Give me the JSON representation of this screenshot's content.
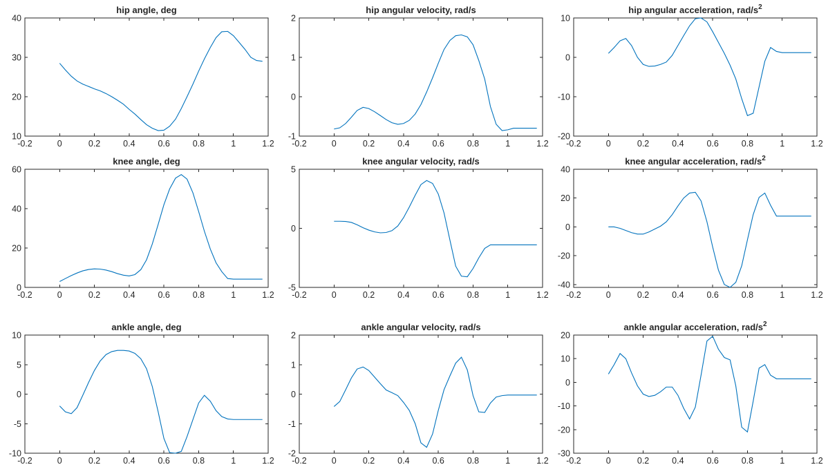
{
  "figure": {
    "background": "#ffffff",
    "axis_color": "#262626",
    "line_color": "#0072BD"
  },
  "chart_data": [
    {
      "type": "line",
      "title": "hip angle, deg",
      "title_sup": "",
      "xlim": [
        -0.2,
        1.2
      ],
      "ylim": [
        10,
        40
      ],
      "xticks": [
        "-0.2",
        "0",
        "0.2",
        "0.4",
        "0.6",
        "0.8",
        "1",
        "1.2"
      ],
      "yticks": [
        "10",
        "20",
        "30",
        "40"
      ],
      "series": [
        {
          "x": [
            0,
            0.033,
            0.067,
            0.1,
            0.133,
            0.167,
            0.2,
            0.233,
            0.267,
            0.3,
            0.333,
            0.367,
            0.4,
            0.433,
            0.467,
            0.5,
            0.533,
            0.567,
            0.6,
            0.633,
            0.667,
            0.7,
            0.733,
            0.767,
            0.8,
            0.833,
            0.867,
            0.9,
            0.933,
            0.967,
            1.0,
            1.033,
            1.067,
            1.1,
            1.133,
            1.167
          ],
          "y": [
            28.5,
            26.8,
            25.2,
            24.0,
            23.2,
            22.6,
            22.0,
            21.5,
            20.8,
            20.0,
            19.1,
            18.1,
            16.8,
            15.6,
            14.2,
            12.9,
            12.0,
            11.4,
            11.5,
            12.5,
            14.3,
            17.0,
            20.0,
            23.2,
            26.5,
            29.6,
            32.5,
            35.0,
            36.5,
            36.6,
            35.5,
            33.8,
            32.0,
            30.0,
            29.2,
            29.0
          ]
        }
      ]
    },
    {
      "type": "line",
      "title": "hip angular velocity, rad/s",
      "title_sup": "",
      "xlim": [
        -0.2,
        1.2
      ],
      "ylim": [
        -1,
        2
      ],
      "xticks": [
        "-0.2",
        "0",
        "0.2",
        "0.4",
        "0.6",
        "0.8",
        "1",
        "1.2"
      ],
      "yticks": [
        "-1",
        "0",
        "1",
        "2"
      ],
      "series": [
        {
          "x": [
            0,
            0.033,
            0.067,
            0.1,
            0.133,
            0.167,
            0.2,
            0.233,
            0.267,
            0.3,
            0.333,
            0.367,
            0.4,
            0.433,
            0.467,
            0.5,
            0.533,
            0.567,
            0.6,
            0.633,
            0.667,
            0.7,
            0.733,
            0.767,
            0.8,
            0.833,
            0.867,
            0.9,
            0.933,
            0.967,
            1.0,
            1.033,
            1.067,
            1.1,
            1.133,
            1.167
          ],
          "y": [
            -0.82,
            -0.79,
            -0.68,
            -0.52,
            -0.35,
            -0.27,
            -0.3,
            -0.38,
            -0.48,
            -0.58,
            -0.66,
            -0.7,
            -0.68,
            -0.6,
            -0.44,
            -0.2,
            0.12,
            0.48,
            0.85,
            1.2,
            1.43,
            1.55,
            1.57,
            1.52,
            1.32,
            0.92,
            0.45,
            -0.25,
            -0.7,
            -0.86,
            -0.84,
            -0.8,
            -0.8,
            -0.8,
            -0.8,
            -0.8
          ]
        }
      ]
    },
    {
      "type": "line",
      "title": "hip angular acceleration, rad/s",
      "title_sup": "2",
      "xlim": [
        -0.2,
        1.2
      ],
      "ylim": [
        -20,
        10
      ],
      "xticks": [
        "-0.2",
        "0",
        "0.2",
        "0.4",
        "0.6",
        "0.8",
        "1",
        "1.2"
      ],
      "yticks": [
        "-20",
        "-10",
        "0",
        "10"
      ],
      "series": [
        {
          "x": [
            0,
            0.033,
            0.067,
            0.1,
            0.133,
            0.167,
            0.2,
            0.233,
            0.267,
            0.3,
            0.333,
            0.367,
            0.4,
            0.433,
            0.467,
            0.5,
            0.533,
            0.567,
            0.6,
            0.633,
            0.667,
            0.7,
            0.733,
            0.767,
            0.8,
            0.833,
            0.867,
            0.9,
            0.933,
            0.967,
            1.0,
            1.033,
            1.067,
            1.1,
            1.133,
            1.167
          ],
          "y": [
            1.0,
            2.5,
            4.2,
            4.8,
            3.0,
            0.0,
            -1.8,
            -2.3,
            -2.2,
            -1.8,
            -1.2,
            0.5,
            3.0,
            5.5,
            8.0,
            9.8,
            10.5,
            9.0,
            6.5,
            3.8,
            1.0,
            -2.0,
            -5.5,
            -10.5,
            -14.8,
            -14.2,
            -7.5,
            -1.0,
            2.5,
            1.5,
            1.2,
            1.2,
            1.2,
            1.2,
            1.2,
            1.2
          ]
        }
      ]
    },
    {
      "type": "line",
      "title": "knee angle, deg",
      "title_sup": "",
      "xlim": [
        -0.2,
        1.2
      ],
      "ylim": [
        0,
        60
      ],
      "xticks": [
        "-0.2",
        "0",
        "0.2",
        "0.4",
        "0.6",
        "0.8",
        "1",
        "1.2"
      ],
      "yticks": [
        "0",
        "20",
        "40",
        "60"
      ],
      "series": [
        {
          "x": [
            0,
            0.033,
            0.067,
            0.1,
            0.133,
            0.167,
            0.2,
            0.233,
            0.267,
            0.3,
            0.333,
            0.367,
            0.4,
            0.433,
            0.467,
            0.5,
            0.533,
            0.567,
            0.6,
            0.633,
            0.667,
            0.7,
            0.733,
            0.767,
            0.8,
            0.833,
            0.867,
            0.9,
            0.933,
            0.967,
            1.0,
            1.033,
            1.067,
            1.1,
            1.133,
            1.167
          ],
          "y": [
            3.0,
            4.5,
            6.0,
            7.3,
            8.4,
            9.1,
            9.4,
            9.3,
            8.8,
            8.0,
            7.0,
            6.2,
            5.8,
            6.5,
            9.0,
            14.0,
            22.0,
            32.0,
            42.0,
            50.0,
            55.5,
            57.3,
            55.0,
            48.0,
            38.5,
            28.5,
            19.5,
            12.5,
            8.0,
            4.5,
            4.2,
            4.2,
            4.2,
            4.2,
            4.2,
            4.2
          ]
        }
      ]
    },
    {
      "type": "line",
      "title": "knee angular velocity, rad/s",
      "title_sup": "",
      "xlim": [
        -0.2,
        1.2
      ],
      "ylim": [
        -5,
        5
      ],
      "xticks": [
        "-0.2",
        "0",
        "0.2",
        "0.4",
        "0.6",
        "0.8",
        "1",
        "1.2"
      ],
      "yticks": [
        "-5",
        "0",
        "5"
      ],
      "series": [
        {
          "x": [
            0,
            0.033,
            0.067,
            0.1,
            0.133,
            0.167,
            0.2,
            0.233,
            0.267,
            0.3,
            0.333,
            0.367,
            0.4,
            0.433,
            0.467,
            0.5,
            0.533,
            0.567,
            0.6,
            0.633,
            0.667,
            0.7,
            0.733,
            0.767,
            0.8,
            0.833,
            0.867,
            0.9,
            0.933,
            0.967,
            1.0,
            1.033,
            1.067,
            1.1,
            1.133,
            1.167
          ],
          "y": [
            0.6,
            0.6,
            0.58,
            0.5,
            0.3,
            0.05,
            -0.15,
            -0.3,
            -0.38,
            -0.35,
            -0.2,
            0.2,
            0.9,
            1.8,
            2.8,
            3.7,
            4.05,
            3.8,
            2.9,
            1.3,
            -1.0,
            -3.2,
            -4.05,
            -4.1,
            -3.4,
            -2.5,
            -1.7,
            -1.4,
            -1.4,
            -1.4,
            -1.4,
            -1.4,
            -1.4,
            -1.4,
            -1.4,
            -1.4
          ]
        }
      ]
    },
    {
      "type": "line",
      "title": "knee angular acceleration, rad/s",
      "title_sup": "2",
      "xlim": [
        -0.2,
        1.2
      ],
      "ylim": [
        -42,
        40
      ],
      "xticks": [
        "-0.2",
        "0",
        "0.2",
        "0.4",
        "0.6",
        "0.8",
        "1",
        "1.2"
      ],
      "yticks": [
        "-40",
        "-20",
        "0",
        "20",
        "40"
      ],
      "series": [
        {
          "x": [
            0,
            0.033,
            0.067,
            0.1,
            0.133,
            0.167,
            0.2,
            0.233,
            0.267,
            0.3,
            0.333,
            0.367,
            0.4,
            0.433,
            0.467,
            0.5,
            0.533,
            0.567,
            0.6,
            0.633,
            0.667,
            0.7,
            0.733,
            0.767,
            0.8,
            0.833,
            0.867,
            0.9,
            0.933,
            0.967,
            1.0,
            1.033,
            1.067,
            1.1,
            1.133,
            1.167
          ],
          "y": [
            0.0,
            0.0,
            -1.0,
            -2.5,
            -4.0,
            -5.0,
            -5.0,
            -3.5,
            -1.5,
            0.5,
            3.5,
            8.5,
            14.5,
            20.0,
            23.5,
            24.0,
            18.0,
            3.5,
            -14.0,
            -30.0,
            -40.0,
            -43.0,
            -38.5,
            -27.0,
            -9.0,
            8.5,
            20.5,
            23.5,
            15.0,
            7.5,
            7.5,
            7.5,
            7.5,
            7.5,
            7.5,
            7.5
          ]
        }
      ]
    },
    {
      "type": "line",
      "title": "ankle angle, deg",
      "title_sup": "",
      "xlim": [
        -0.2,
        1.2
      ],
      "ylim": [
        -10,
        10
      ],
      "xticks": [
        "-0.2",
        "0",
        "0.2",
        "0.4",
        "0.6",
        "0.8",
        "1",
        "1.2"
      ],
      "yticks": [
        "-10",
        "-5",
        "0",
        "5",
        "10"
      ],
      "series": [
        {
          "x": [
            0,
            0.033,
            0.067,
            0.1,
            0.133,
            0.167,
            0.2,
            0.233,
            0.267,
            0.3,
            0.333,
            0.367,
            0.4,
            0.433,
            0.467,
            0.5,
            0.533,
            0.567,
            0.6,
            0.633,
            0.667,
            0.7,
            0.733,
            0.767,
            0.8,
            0.833,
            0.867,
            0.9,
            0.933,
            0.967,
            1.0,
            1.033,
            1.067,
            1.1,
            1.133,
            1.167
          ],
          "y": [
            -2.0,
            -3.0,
            -3.3,
            -2.3,
            -0.2,
            2.0,
            4.0,
            5.6,
            6.7,
            7.2,
            7.4,
            7.4,
            7.3,
            6.9,
            6.0,
            4.3,
            1.3,
            -3.0,
            -7.5,
            -9.9,
            -10.5,
            -9.7,
            -7.2,
            -4.3,
            -1.5,
            -0.2,
            -1.2,
            -2.8,
            -3.8,
            -4.2,
            -4.3,
            -4.3,
            -4.3,
            -4.3,
            -4.3,
            -4.3
          ]
        }
      ]
    },
    {
      "type": "line",
      "title": "ankle angular velocity, rad/s",
      "title_sup": "",
      "xlim": [
        -0.2,
        1.2
      ],
      "ylim": [
        -2,
        2
      ],
      "xticks": [
        "-0.2",
        "0",
        "0.2",
        "0.4",
        "0.6",
        "0.8",
        "1",
        "1.2"
      ],
      "yticks": [
        "-2",
        "-1",
        "0",
        "1",
        "2"
      ],
      "series": [
        {
          "x": [
            0,
            0.033,
            0.067,
            0.1,
            0.133,
            0.167,
            0.2,
            0.233,
            0.267,
            0.3,
            0.333,
            0.367,
            0.4,
            0.433,
            0.467,
            0.5,
            0.533,
            0.567,
            0.6,
            0.633,
            0.667,
            0.7,
            0.733,
            0.767,
            0.8,
            0.833,
            0.867,
            0.9,
            0.933,
            0.967,
            1.0,
            1.033,
            1.067,
            1.1,
            1.133,
            1.167
          ],
          "y": [
            -0.42,
            -0.25,
            0.15,
            0.55,
            0.85,
            0.92,
            0.8,
            0.58,
            0.35,
            0.14,
            0.05,
            -0.05,
            -0.28,
            -0.55,
            -1.0,
            -1.65,
            -1.8,
            -1.35,
            -0.55,
            0.15,
            0.62,
            1.05,
            1.25,
            0.82,
            -0.05,
            -0.6,
            -0.62,
            -0.3,
            -0.1,
            -0.05,
            -0.03,
            -0.03,
            -0.03,
            -0.03,
            -0.03,
            -0.03
          ]
        }
      ]
    },
    {
      "type": "line",
      "title": "ankle angular acceleration, rad/s",
      "title_sup": "2",
      "xlim": [
        -0.2,
        1.2
      ],
      "ylim": [
        -30,
        20
      ],
      "xticks": [
        "-0.2",
        "0",
        "0.2",
        "0.4",
        "0.6",
        "0.8",
        "1",
        "1.2"
      ],
      "yticks": [
        "-30",
        "-20",
        "-10",
        "0",
        "10",
        "20"
      ],
      "series": [
        {
          "x": [
            0,
            0.033,
            0.067,
            0.1,
            0.133,
            0.167,
            0.2,
            0.233,
            0.267,
            0.3,
            0.333,
            0.367,
            0.4,
            0.433,
            0.467,
            0.5,
            0.533,
            0.567,
            0.6,
            0.633,
            0.667,
            0.7,
            0.733,
            0.767,
            0.8,
            0.833,
            0.867,
            0.9,
            0.933,
            0.967,
            1.0,
            1.033,
            1.067,
            1.1,
            1.133,
            1.167
          ],
          "y": [
            3.5,
            7.5,
            12.2,
            10.0,
            4.0,
            -1.5,
            -5.0,
            -6.0,
            -5.5,
            -4.0,
            -2.0,
            -2.0,
            -5.5,
            -11.0,
            -15.5,
            -10.5,
            3.0,
            17.5,
            19.5,
            14.0,
            10.5,
            9.5,
            -1.5,
            -19.0,
            -21.0,
            -8.0,
            6.0,
            7.5,
            3.0,
            1.5,
            1.5,
            1.5,
            1.5,
            1.5,
            1.5,
            1.5
          ]
        }
      ]
    }
  ]
}
